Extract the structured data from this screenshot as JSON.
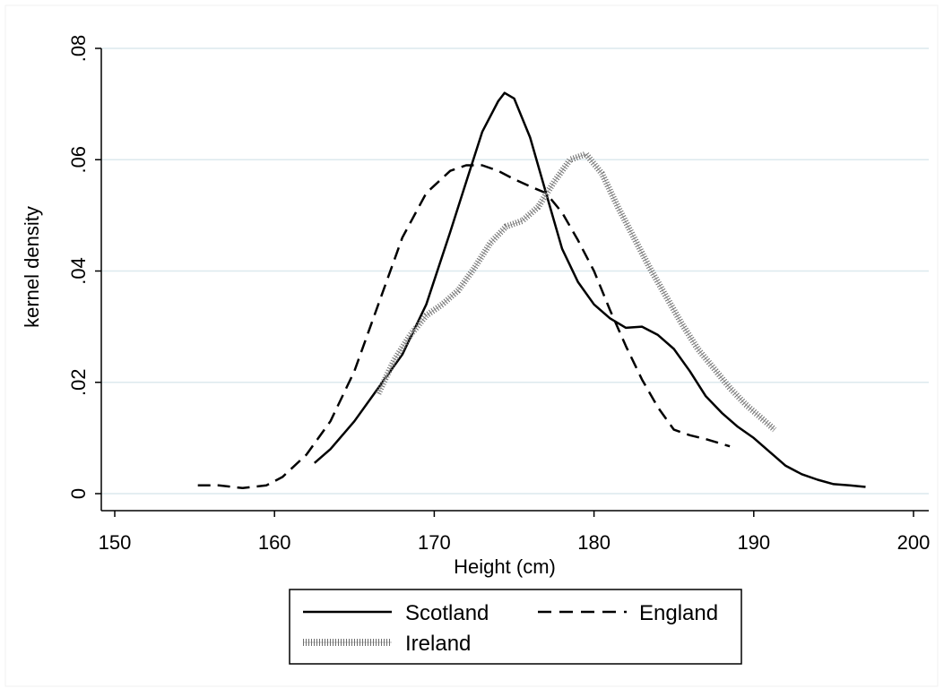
{
  "chart_data": {
    "type": "line",
    "xlabel": "Height (cm)",
    "ylabel": "kernel density",
    "xlim": [
      150,
      200
    ],
    "ylim": [
      0,
      0.08
    ],
    "x_ticks": [
      150,
      160,
      170,
      180,
      190,
      200
    ],
    "x_tick_labels": [
      "150",
      "160",
      "170",
      "180",
      "190",
      "200"
    ],
    "y_ticks": [
      0,
      0.02,
      0.04,
      0.06,
      0.08
    ],
    "y_tick_labels": [
      "0",
      ".02",
      ".04",
      ".06",
      ".08"
    ],
    "grid": true,
    "legend_placement": "bottom",
    "series": [
      {
        "name": "Scotland",
        "style": "solid",
        "color": "#000000",
        "x": [
          162.5,
          163.5,
          165,
          166.5,
          168,
          169.5,
          171,
          172,
          173,
          174,
          174.4,
          175,
          176,
          177,
          178,
          179,
          180,
          181,
          182,
          183,
          184,
          185,
          186,
          187,
          188,
          189,
          190,
          191,
          192,
          193,
          194,
          195,
          196,
          197
        ],
        "y": [
          0.0055,
          0.008,
          0.013,
          0.019,
          0.025,
          0.034,
          0.047,
          0.056,
          0.065,
          0.0705,
          0.072,
          0.071,
          0.064,
          0.054,
          0.044,
          0.038,
          0.034,
          0.0315,
          0.0298,
          0.03,
          0.0285,
          0.026,
          0.022,
          0.0175,
          0.0145,
          0.012,
          0.01,
          0.0075,
          0.005,
          0.0035,
          0.0025,
          0.0017,
          0.0015,
          0.0012
        ]
      },
      {
        "name": "England",
        "style": "dashed",
        "color": "#000000",
        "x": [
          155.2,
          156.5,
          158,
          159.5,
          160.5,
          162,
          163.5,
          165,
          166.5,
          168,
          169.5,
          171,
          172,
          173,
          174,
          175,
          176,
          177,
          178,
          179,
          180,
          181,
          182,
          183,
          184,
          185,
          186,
          187,
          188.5
        ],
        "y": [
          0.0015,
          0.0015,
          0.001,
          0.0015,
          0.003,
          0.007,
          0.013,
          0.022,
          0.034,
          0.046,
          0.054,
          0.058,
          0.059,
          0.059,
          0.058,
          0.0565,
          0.0552,
          0.054,
          0.0505,
          0.0455,
          0.04,
          0.033,
          0.0265,
          0.0205,
          0.0155,
          0.0115,
          0.0105,
          0.0098,
          0.0085
        ]
      },
      {
        "name": "Ireland",
        "style": "hatched",
        "color": "#6e6e6e",
        "x": [
          166.5,
          167.5,
          168.5,
          169.5,
          170.5,
          171.5,
          172.5,
          173.5,
          174.5,
          175.5,
          176.5,
          177.5,
          178.5,
          179.5,
          180.5,
          181.5,
          182.5,
          183.5,
          184.5,
          185.5,
          186.5,
          187.5,
          188.5,
          189.5,
          190.5,
          191.3
        ],
        "y": [
          0.018,
          0.024,
          0.0285,
          0.032,
          0.034,
          0.0365,
          0.0405,
          0.045,
          0.048,
          0.049,
          0.0515,
          0.056,
          0.06,
          0.061,
          0.0575,
          0.0515,
          0.046,
          0.0405,
          0.0355,
          0.0305,
          0.026,
          0.0225,
          0.019,
          0.016,
          0.0135,
          0.0115
        ]
      }
    ]
  },
  "legend": {
    "items": [
      {
        "label": "Scotland",
        "style": "solid"
      },
      {
        "label": "England",
        "style": "dashed"
      },
      {
        "label": "Ireland",
        "style": "hatched"
      }
    ]
  },
  "colors": {
    "background": "#ffffff",
    "gridline": "#dce9ee",
    "axis": "#000000"
  }
}
